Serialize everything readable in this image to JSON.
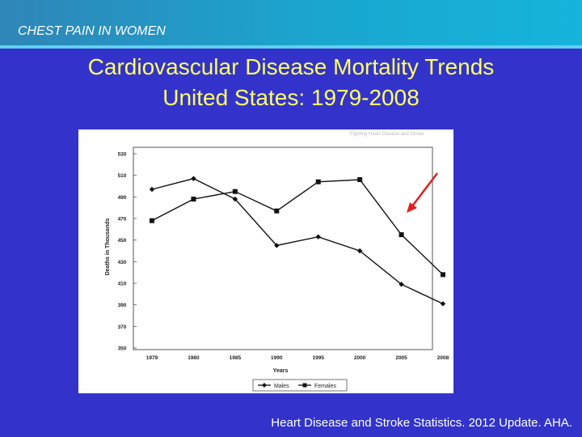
{
  "slide": {
    "header": "CHEST PAIN IN WOMEN",
    "title_line1": "Cardiovascular Disease Mortality Trends",
    "title_line2": "United States: 1979-2008",
    "citation": "Heart Disease and Stroke Statistics. 2012 Update. AHA."
  },
  "colors": {
    "background": "#3333cc",
    "title": "#ffff66",
    "arrow": "#e02020"
  },
  "chart_data": {
    "type": "line",
    "chart_caption": "Fighting Heart Disease and Stroke",
    "xlabel": "Years",
    "ylabel": "Deaths in Thousands",
    "categories": [
      "1979",
      "1980",
      "1985",
      "1990",
      "1995",
      "2000",
      "2005",
      "2008"
    ],
    "yticks": [
      "530",
      "510",
      "490",
      "470",
      "450",
      "430",
      "410",
      "390",
      "370",
      "350"
    ],
    "ylim": [
      350,
      530
    ],
    "series": [
      {
        "name": "Males",
        "marker": "diamond",
        "values": [
          497,
          507,
          488,
          445,
          453,
          440,
          409,
          391
        ]
      },
      {
        "name": "Females",
        "marker": "square",
        "values": [
          468,
          488,
          495,
          477,
          504,
          506,
          455,
          418
        ]
      }
    ],
    "legend": {
      "position": "bottom-center",
      "items": [
        "Males",
        "Females"
      ]
    },
    "annotation": {
      "type": "arrow",
      "color": "red",
      "points_to": "Females 2005"
    }
  }
}
